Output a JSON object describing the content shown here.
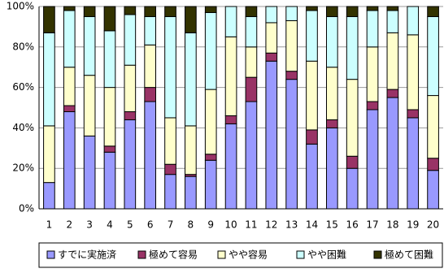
{
  "chart_data": {
    "type": "stacked_bar_100",
    "categories": [
      "1",
      "2",
      "3",
      "4",
      "5",
      "6",
      "7",
      "8",
      "9",
      "10",
      "11",
      "12",
      "13",
      "14",
      "15",
      "16",
      "17",
      "18",
      "19",
      "20"
    ],
    "series": [
      {
        "name": "すでに実施済",
        "color": "#9999ff",
        "values": [
          13,
          48,
          36,
          28,
          44,
          53,
          17,
          16,
          24,
          42,
          53,
          73,
          64,
          32,
          40,
          20,
          49,
          55,
          45,
          19
        ]
      },
      {
        "name": "極めて容易",
        "color": "#993366",
        "values": [
          0,
          3,
          0,
          3,
          4,
          7,
          5,
          1,
          3,
          4,
          12,
          4,
          4,
          7,
          4,
          6,
          4,
          4,
          4,
          6
        ]
      },
      {
        "name": "やや容易",
        "color": "#ffffcc",
        "values": [
          28,
          19,
          30,
          29,
          23,
          21,
          23,
          24,
          32,
          39,
          15,
          15,
          25,
          34,
          26,
          38,
          27,
          28,
          37,
          31
        ]
      },
      {
        "name": "やや困難",
        "color": "#ccffff",
        "values": [
          46,
          28,
          29,
          28,
          25,
          14,
          50,
          46,
          38,
          15,
          15,
          8,
          7,
          25,
          25,
          31,
          18,
          11,
          14,
          39
        ]
      },
      {
        "name": "極めて困難",
        "color": "#333300",
        "values": [
          13,
          2,
          5,
          12,
          4,
          5,
          5,
          13,
          3,
          0,
          5,
          0,
          0,
          2,
          5,
          5,
          2,
          2,
          0,
          5
        ]
      }
    ],
    "ylim": [
      0,
      100
    ],
    "yticks": [
      {
        "value": 0,
        "label": "0%"
      },
      {
        "value": 20,
        "label": "20%"
      },
      {
        "value": 40,
        "label": "40%"
      },
      {
        "value": 60,
        "label": "60%"
      },
      {
        "value": 80,
        "label": "80%"
      },
      {
        "value": 100,
        "label": "100%"
      }
    ],
    "grid": true,
    "legend": "bottom"
  }
}
